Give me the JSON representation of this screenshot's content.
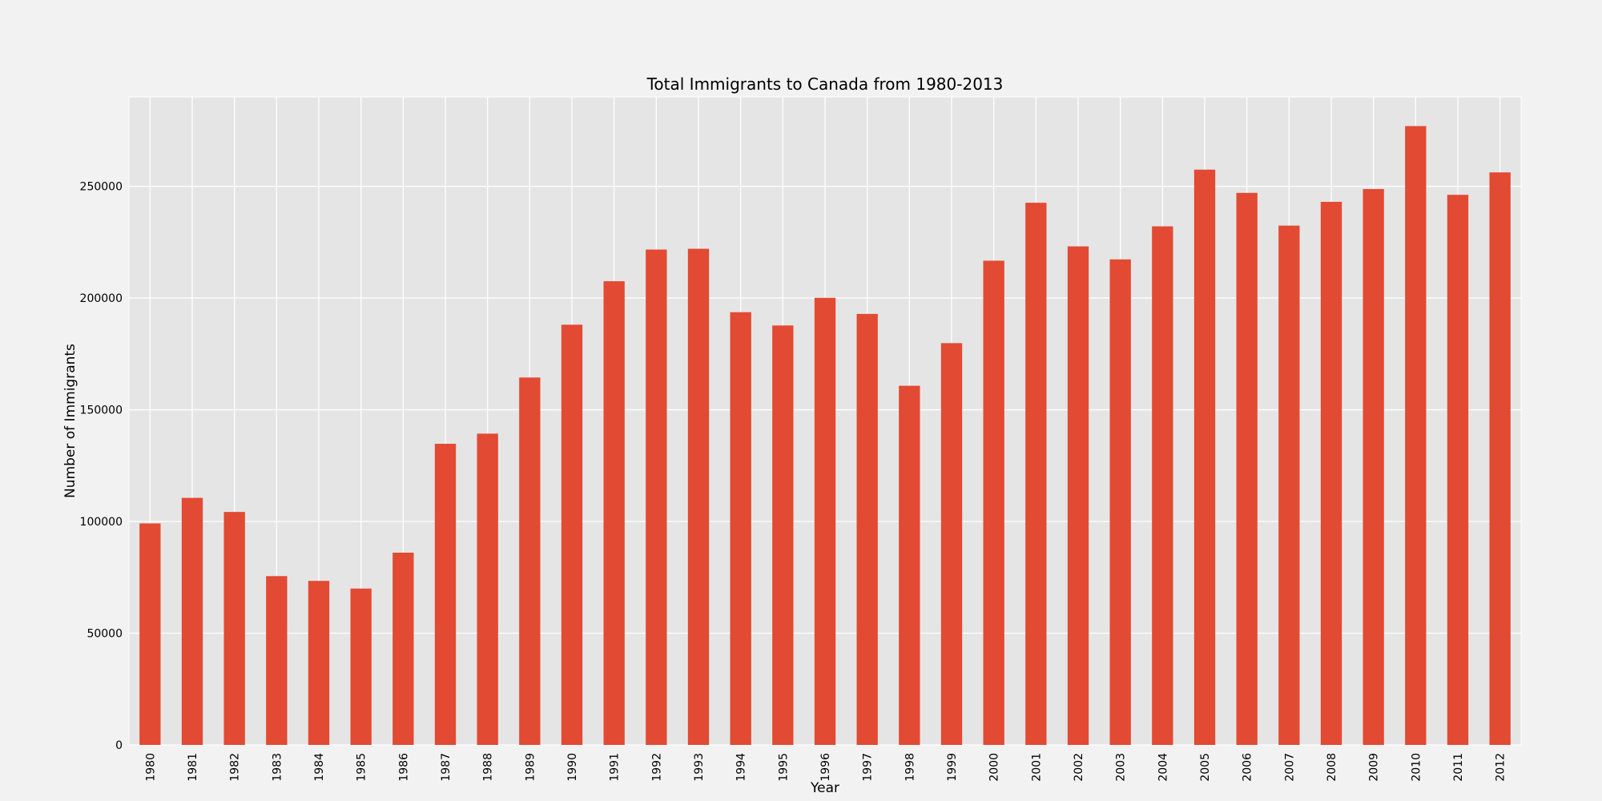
{
  "chart_data": {
    "type": "bar",
    "title": "Total Immigrants to Canada from 1980-2013",
    "xlabel": "Year",
    "ylabel": "Number of Immigrants",
    "categories": [
      "1980",
      "1981",
      "1982",
      "1983",
      "1984",
      "1985",
      "1986",
      "1987",
      "1988",
      "1989",
      "1990",
      "1991",
      "1992",
      "1993",
      "1994",
      "1995",
      "1996",
      "1997",
      "1998",
      "1999",
      "2000",
      "2001",
      "2002",
      "2003",
      "2004",
      "2005",
      "2006",
      "2007",
      "2008",
      "2009",
      "2010",
      "2011",
      "2012"
    ],
    "values": [
      99137,
      110563,
      104271,
      75550,
      73417,
      69978,
      86048,
      134771,
      139306,
      164432,
      188054,
      207509,
      221687,
      222049,
      193665,
      187712,
      200085,
      192885,
      160727,
      179818,
      216712,
      242643,
      223111,
      217297,
      232083,
      257457,
      247057,
      232405,
      243047,
      248768,
      276956,
      246194,
      256222
    ],
    "ylim": [
      0,
      290000
    ],
    "yticks": [
      0,
      50000,
      100000,
      150000,
      200000,
      250000
    ],
    "ytick_labels": [
      "0",
      "50000",
      "100000",
      "150000",
      "200000",
      "250000"
    ],
    "grid": true,
    "colors": {
      "bar": "#e24a33",
      "plot_background": "#e5e5e5",
      "figure_background": "#f2f2f2",
      "grid": "#ffffff"
    }
  }
}
